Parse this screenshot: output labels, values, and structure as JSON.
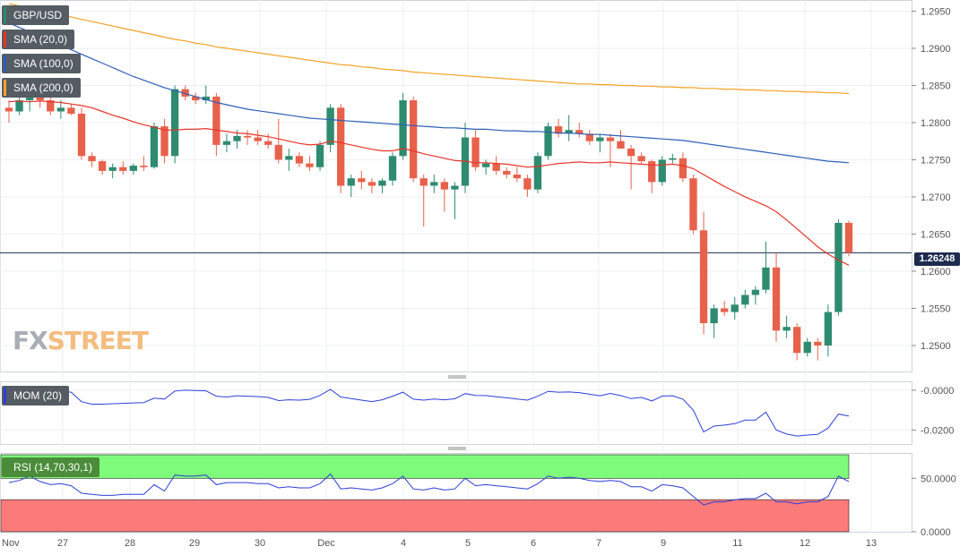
{
  "pair": "GBP/USD",
  "indicators": {
    "sma20": {
      "label": "SMA (20,0)",
      "color": "#e8332a"
    },
    "sma100": {
      "label": "SMA (100,0)",
      "color": "#2d5fb8"
    },
    "sma200": {
      "label": "SMA (200,0)",
      "color": "#f4a224"
    }
  },
  "mom_label": "MOM (20)",
  "rsi_label": "RSI (14,70,30,1)",
  "current_price": "1.26248",
  "watermark": {
    "left": "FX",
    "right": "STREET"
  },
  "colors": {
    "up": "#2e8b6f",
    "down": "#e8614b",
    "price_line": "#1d2b4f",
    "rsi_high_zone": "#7efb7a",
    "rsi_low_zone": "#fb7a7a",
    "mom_line": "#2d3fd8",
    "rsi_line": "#2d3fd8"
  },
  "chart_data": {
    "type": "candlestick",
    "price_axis": {
      "ylim": [
        1.2465,
        1.2965
      ],
      "ticks": [
        "1.2950",
        "1.2900",
        "1.2850",
        "1.2800",
        "1.2750",
        "1.2700",
        "1.2650",
        "1.2600",
        "1.2550",
        "1.2500"
      ]
    },
    "x_labels": [
      "Nov",
      "27",
      "28",
      "29",
      "30",
      "Dec",
      "4",
      "5",
      "6",
      "7",
      "9",
      "11",
      "12",
      "13"
    ],
    "candles": [
      [
        1.282,
        1.283,
        1.28,
        1.2815
      ],
      [
        1.2815,
        1.2835,
        1.281,
        1.283
      ],
      [
        1.283,
        1.2845,
        1.2815,
        1.2835
      ],
      [
        1.2835,
        1.285,
        1.282,
        1.283
      ],
      [
        1.283,
        1.2835,
        1.281,
        1.2815
      ],
      [
        1.2815,
        1.283,
        1.2805,
        1.282
      ],
      [
        1.282,
        1.2825,
        1.281,
        1.2812
      ],
      [
        1.2812,
        1.282,
        1.275,
        1.2755
      ],
      [
        1.2755,
        1.276,
        1.274,
        1.2748
      ],
      [
        1.2748,
        1.275,
        1.273,
        1.2735
      ],
      [
        1.2735,
        1.2745,
        1.2725,
        1.274
      ],
      [
        1.274,
        1.2748,
        1.273,
        1.2735
      ],
      [
        1.2735,
        1.2745,
        1.273,
        1.2742
      ],
      [
        1.2742,
        1.2755,
        1.2735,
        1.274
      ],
      [
        1.274,
        1.28,
        1.2738,
        1.2795
      ],
      [
        1.2795,
        1.2805,
        1.2745,
        1.2755
      ],
      [
        1.2755,
        1.285,
        1.2745,
        1.2845
      ],
      [
        1.2845,
        1.285,
        1.283,
        1.2835
      ],
      [
        1.2835,
        1.284,
        1.2825,
        1.283
      ],
      [
        1.283,
        1.285,
        1.2825,
        1.2835
      ],
      [
        1.2835,
        1.284,
        1.2755,
        1.277
      ],
      [
        1.277,
        1.2785,
        1.276,
        1.2775
      ],
      [
        1.2775,
        1.279,
        1.2765,
        1.2782
      ],
      [
        1.2782,
        1.279,
        1.277,
        1.278
      ],
      [
        1.278,
        1.279,
        1.277,
        1.2775
      ],
      [
        1.2775,
        1.2785,
        1.2765,
        1.277
      ],
      [
        1.277,
        1.2805,
        1.2745,
        1.275
      ],
      [
        1.275,
        1.2765,
        1.2735,
        1.2755
      ],
      [
        1.2755,
        1.276,
        1.274,
        1.2745
      ],
      [
        1.2745,
        1.2755,
        1.2735,
        1.274
      ],
      [
        1.274,
        1.2775,
        1.2735,
        1.277
      ],
      [
        1.277,
        1.2825,
        1.276,
        1.282
      ],
      [
        1.282,
        1.2825,
        1.2705,
        1.2715
      ],
      [
        1.2715,
        1.273,
        1.27,
        1.2725
      ],
      [
        1.2725,
        1.2735,
        1.271,
        1.272
      ],
      [
        1.272,
        1.2725,
        1.2705,
        1.2715
      ],
      [
        1.2715,
        1.2725,
        1.2705,
        1.2722
      ],
      [
        1.2722,
        1.276,
        1.2715,
        1.2755
      ],
      [
        1.2755,
        1.284,
        1.275,
        1.283
      ],
      [
        1.283,
        1.2835,
        1.272,
        1.2725
      ],
      [
        1.2725,
        1.273,
        1.266,
        1.2715
      ],
      [
        1.2715,
        1.273,
        1.2705,
        1.272
      ],
      [
        1.272,
        1.2725,
        1.268,
        1.271
      ],
      [
        1.271,
        1.272,
        1.267,
        1.2715
      ],
      [
        1.2715,
        1.28,
        1.2705,
        1.278
      ],
      [
        1.278,
        1.279,
        1.2735,
        1.274
      ],
      [
        1.274,
        1.275,
        1.273,
        1.2745
      ],
      [
        1.2745,
        1.2755,
        1.273,
        1.2735
      ],
      [
        1.2735,
        1.274,
        1.2725,
        1.273
      ],
      [
        1.273,
        1.274,
        1.272,
        1.2725
      ],
      [
        1.2725,
        1.273,
        1.27,
        1.271
      ],
      [
        1.271,
        1.276,
        1.2705,
        1.2755
      ],
      [
        1.2755,
        1.28,
        1.275,
        1.2795
      ],
      [
        1.2795,
        1.2805,
        1.278,
        1.2785
      ],
      [
        1.2785,
        1.281,
        1.2775,
        1.279
      ],
      [
        1.279,
        1.28,
        1.278,
        1.2785
      ],
      [
        1.2785,
        1.279,
        1.277,
        1.2775
      ],
      [
        1.2775,
        1.2785,
        1.276,
        1.278
      ],
      [
        1.278,
        1.2785,
        1.274,
        1.2775
      ],
      [
        1.2775,
        1.279,
        1.2765,
        1.2765
      ],
      [
        1.2765,
        1.277,
        1.271,
        1.2755
      ],
      [
        1.2755,
        1.276,
        1.2745,
        1.2748
      ],
      [
        1.2748,
        1.275,
        1.2705,
        1.272
      ],
      [
        1.272,
        1.2755,
        1.2715,
        1.275
      ],
      [
        1.275,
        1.2758,
        1.2745,
        1.2752
      ],
      [
        1.2752,
        1.276,
        1.272,
        1.2725
      ],
      [
        1.2725,
        1.273,
        1.265,
        1.2655
      ],
      [
        1.2655,
        1.268,
        1.2515,
        1.253
      ],
      [
        1.253,
        1.2555,
        1.251,
        1.255
      ],
      [
        1.255,
        1.256,
        1.254,
        1.2545
      ],
      [
        1.2545,
        1.2565,
        1.2535,
        1.2555
      ],
      [
        1.2555,
        1.2575,
        1.255,
        1.2568
      ],
      [
        1.2568,
        1.258,
        1.2555,
        1.2575
      ],
      [
        1.2575,
        1.264,
        1.257,
        1.2605
      ],
      [
        1.2605,
        1.2625,
        1.2505,
        1.252
      ],
      [
        1.252,
        1.254,
        1.251,
        1.2525
      ],
      [
        1.2525,
        1.253,
        1.248,
        1.249
      ],
      [
        1.249,
        1.251,
        1.2485,
        1.2505
      ],
      [
        1.2505,
        1.251,
        1.248,
        1.25
      ],
      [
        1.25,
        1.2555,
        1.2485,
        1.2545
      ],
      [
        1.2545,
        1.267,
        1.254,
        1.2665
      ],
      [
        1.2665,
        1.2668,
        1.262,
        1.2625
      ]
    ],
    "sma20": [
      1.2828,
      1.2829,
      1.2828,
      1.2829,
      1.2828,
      1.2827,
      1.2825,
      1.2823,
      1.282,
      1.2815,
      1.281,
      1.2806,
      1.2801,
      1.2797,
      1.2794,
      1.279,
      1.279,
      1.2791,
      1.2791,
      1.2792,
      1.279,
      1.2788,
      1.2786,
      1.2785,
      1.2783,
      1.2781,
      1.2778,
      1.2775,
      1.2772,
      1.277,
      1.2771,
      1.2775,
      1.2773,
      1.277,
      1.2767,
      1.2764,
      1.2762,
      1.2762,
      1.2765,
      1.2762,
      1.2758,
      1.2755,
      1.2752,
      1.2749,
      1.2748,
      1.2746,
      1.2746,
      1.2745,
      1.2744,
      1.2742,
      1.274,
      1.2741,
      1.2743,
      1.2745,
      1.2746,
      1.2747,
      1.2746,
      1.2746,
      1.2747,
      1.2746,
      1.2745,
      1.2744,
      1.2743,
      1.2743,
      1.2744,
      1.2742,
      1.2738,
      1.273,
      1.2722,
      1.2714,
      1.2707,
      1.27,
      1.2694,
      1.2688,
      1.268,
      1.2669,
      1.2657,
      1.2645,
      1.2633,
      1.2623,
      1.2615,
      1.2608
    ],
    "sma100": [
      1.2934,
      1.2928,
      1.2922,
      1.2916,
      1.291,
      1.2904,
      1.2898,
      1.2892,
      1.2886,
      1.288,
      1.2874,
      1.2868,
      1.2862,
      1.2857,
      1.2852,
      1.2847,
      1.2843,
      1.2839,
      1.2835,
      1.2831,
      1.2827,
      1.2824,
      1.2821,
      1.2818,
      1.2816,
      1.2814,
      1.2812,
      1.281,
      1.2808,
      1.2806,
      1.2805,
      1.2804,
      1.2803,
      1.2802,
      1.2801,
      1.28,
      1.2799,
      1.2798,
      1.2797,
      1.2796,
      1.2795,
      1.2794,
      1.2793,
      1.2793,
      1.2792,
      1.2791,
      1.2791,
      1.279,
      1.2789,
      1.2789,
      1.2788,
      1.2788,
      1.2787,
      1.2786,
      1.2786,
      1.2785,
      1.2784,
      1.2784,
      1.2783,
      1.2782,
      1.2781,
      1.278,
      1.2779,
      1.2778,
      1.2777,
      1.2776,
      1.2774,
      1.2772,
      1.277,
      1.2768,
      1.2766,
      1.2764,
      1.2762,
      1.276,
      1.2758,
      1.2756,
      1.2754,
      1.2752,
      1.275,
      1.2748,
      1.2747,
      1.2746
    ],
    "sma200": [
      1.296,
      1.2957,
      1.2954,
      1.2951,
      1.2948,
      1.2945,
      1.2942,
      1.2939,
      1.2936,
      1.2933,
      1.293,
      1.2927,
      1.2924,
      1.2921,
      1.2918,
      1.2915,
      1.2912,
      1.291,
      1.2907,
      1.2905,
      1.2902,
      1.29,
      1.2898,
      1.2896,
      1.2894,
      1.2892,
      1.289,
      1.2888,
      1.2886,
      1.2884,
      1.2882,
      1.288,
      1.2878,
      1.2877,
      1.2875,
      1.2874,
      1.2872,
      1.2871,
      1.287,
      1.2868,
      1.2867,
      1.2866,
      1.2865,
      1.2864,
      1.2863,
      1.2862,
      1.2861,
      1.286,
      1.2859,
      1.2858,
      1.2857,
      1.2856,
      1.2855,
      1.2854,
      1.2853,
      1.2852,
      1.2852,
      1.2851,
      1.2851,
      1.285,
      1.285,
      1.2849,
      1.2849,
      1.2848,
      1.2848,
      1.2847,
      1.2847,
      1.2846,
      1.2846,
      1.2845,
      1.2845,
      1.2844,
      1.2844,
      1.2843,
      1.2843,
      1.2842,
      1.2842,
      1.2841,
      1.2841,
      1.284,
      1.284,
      1.2839
    ],
    "mom_axis": {
      "ylim": [
        -0.027,
        0.004
      ],
      "ticks": [
        "-0.0000",
        "-0.0200"
      ]
    },
    "mom": [
      -0.0005,
      -0.0002,
      -0.0006,
      -0.0003,
      -0.0009,
      -0.0005,
      -0.001,
      -0.0058,
      -0.007,
      -0.007,
      -0.0068,
      -0.0066,
      -0.0064,
      -0.0062,
      -0.004,
      -0.0045,
      -0.0004,
      0.0,
      -0.0002,
      -0.0003,
      -0.003,
      -0.0034,
      -0.0028,
      -0.003,
      -0.0032,
      -0.0036,
      -0.0052,
      -0.0048,
      -0.005,
      -0.0046,
      -0.0026,
      0.0004,
      -0.0034,
      -0.0042,
      -0.005,
      -0.0057,
      -0.0048,
      -0.003,
      -0.001,
      -0.0045,
      -0.005,
      -0.0044,
      -0.0048,
      -0.0043,
      -0.0017,
      -0.0026,
      -0.0027,
      -0.0033,
      -0.0038,
      -0.0044,
      -0.005,
      -0.003,
      -0.0006,
      -0.001,
      -0.0009,
      -0.0012,
      -0.002,
      -0.0028,
      -0.0016,
      -0.0027,
      -0.0042,
      -0.0036,
      -0.0054,
      -0.0029,
      -0.0028,
      -0.0045,
      -0.01,
      -0.021,
      -0.018,
      -0.0175,
      -0.0168,
      -0.015,
      -0.015,
      -0.011,
      -0.02,
      -0.022,
      -0.023,
      -0.0225,
      -0.0222,
      -0.019,
      -0.012,
      -0.013
    ],
    "rsi_axis": {
      "ylim": [
        0,
        72
      ],
      "ticks": [
        "50.0000",
        "0.0000"
      ]
    },
    "rsi": [
      46,
      48,
      52,
      47,
      44,
      45,
      43,
      36,
      35,
      34,
      34,
      35,
      35,
      35,
      44,
      38,
      53,
      52,
      52,
      53,
      44,
      46,
      46,
      46,
      45,
      45,
      41,
      42,
      41,
      41,
      45,
      54,
      40,
      41,
      40,
      39,
      41,
      45,
      52,
      40,
      39,
      41,
      39,
      40,
      50,
      43,
      44,
      43,
      42,
      41,
      40,
      45,
      52,
      50,
      51,
      50,
      48,
      47,
      48,
      47,
      42,
      42,
      38,
      44,
      43,
      41,
      33,
      25,
      28,
      28,
      30,
      31,
      31,
      36,
      28,
      28,
      26,
      28,
      28,
      33,
      52,
      47
    ]
  }
}
